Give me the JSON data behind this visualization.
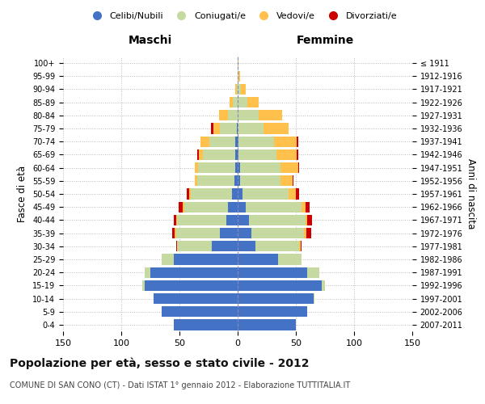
{
  "age_groups": [
    "0-4",
    "5-9",
    "10-14",
    "15-19",
    "20-24",
    "25-29",
    "30-34",
    "35-39",
    "40-44",
    "45-49",
    "50-54",
    "55-59",
    "60-64",
    "65-69",
    "70-74",
    "75-79",
    "80-84",
    "85-89",
    "90-94",
    "95-99",
    "100+"
  ],
  "birth_years": [
    "2007-2011",
    "2002-2006",
    "1997-2001",
    "1992-1996",
    "1987-1991",
    "1982-1986",
    "1977-1981",
    "1972-1976",
    "1967-1971",
    "1962-1966",
    "1957-1961",
    "1952-1956",
    "1947-1951",
    "1942-1946",
    "1937-1941",
    "1932-1936",
    "1927-1931",
    "1922-1926",
    "1917-1921",
    "1912-1916",
    "≤ 1911"
  ],
  "colors": {
    "celibe": "#4472C4",
    "coniugato": "#c5d9a0",
    "vedovo": "#ffc04c",
    "divorziato": "#cc0000"
  },
  "males": {
    "celibe": [
      55,
      65,
      72,
      80,
      75,
      55,
      22,
      15,
      10,
      8,
      5,
      3,
      2,
      2,
      2,
      1,
      0,
      0,
      0,
      0,
      0
    ],
    "coniugato": [
      0,
      0,
      0,
      2,
      5,
      10,
      30,
      38,
      42,
      38,
      35,
      32,
      32,
      28,
      22,
      14,
      8,
      4,
      1,
      0,
      0
    ],
    "vedovo": [
      0,
      0,
      0,
      0,
      0,
      0,
      0,
      1,
      1,
      1,
      2,
      2,
      3,
      3,
      8,
      6,
      8,
      3,
      1,
      0,
      0
    ],
    "divorziato": [
      0,
      0,
      0,
      0,
      0,
      0,
      1,
      2,
      2,
      4,
      2,
      0,
      0,
      2,
      0,
      2,
      0,
      0,
      0,
      0,
      0
    ]
  },
  "females": {
    "nubile": [
      50,
      60,
      65,
      72,
      60,
      35,
      15,
      12,
      10,
      7,
      4,
      2,
      2,
      1,
      1,
      0,
      0,
      0,
      0,
      0,
      0
    ],
    "coniugata": [
      0,
      0,
      1,
      3,
      10,
      20,
      38,
      45,
      48,
      48,
      40,
      35,
      35,
      32,
      30,
      22,
      18,
      8,
      3,
      1,
      0
    ],
    "vedova": [
      0,
      0,
      0,
      0,
      0,
      0,
      1,
      2,
      2,
      3,
      6,
      10,
      15,
      18,
      20,
      22,
      20,
      10,
      4,
      1,
      1
    ],
    "divorziata": [
      0,
      0,
      0,
      0,
      0,
      0,
      1,
      4,
      4,
      4,
      3,
      1,
      1,
      1,
      1,
      0,
      0,
      0,
      0,
      0,
      0
    ]
  },
  "xlim": 150,
  "title": "Popolazione per età, sesso e stato civile - 2012",
  "subtitle": "COMUNE DI SAN CONO (CT) - Dati ISTAT 1° gennaio 2012 - Elaborazione TUTTITALIA.IT",
  "xlabel_left": "Maschi",
  "xlabel_right": "Femmine",
  "ylabel_left": "Fasce di età",
  "ylabel_right": "Anni di nascita",
  "legend_labels": [
    "Celibi/Nubili",
    "Coniugati/e",
    "Vedovi/e",
    "Divorziati/e"
  ]
}
